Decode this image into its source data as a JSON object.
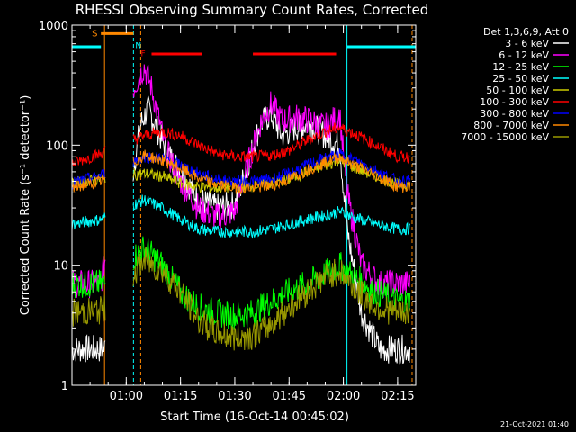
{
  "chart_data": {
    "type": "line",
    "title": "RHESSI Observing Summary Count Rates, Corrected",
    "ylabel": "Corrected Count Rate (s⁻¹ detector⁻¹)",
    "xlabel": "Start Time (16-Oct-14 00:45:02)",
    "y_scale": "log",
    "ylim": [
      1,
      1000
    ],
    "x_unit": "minutes after 00:45:02",
    "xlim": [
      0,
      95
    ],
    "x_ticks": [
      {
        "label": "01:00",
        "t": 15
      },
      {
        "label": "01:15",
        "t": 30
      },
      {
        "label": "01:30",
        "t": 45
      },
      {
        "label": "01:45",
        "t": 60
      },
      {
        "label": "02:00",
        "t": 75
      },
      {
        "label": "02:15",
        "t": 90
      }
    ],
    "y_ticks": [
      {
        "label": "1",
        "v": 1
      },
      {
        "label": "10",
        "v": 10
      },
      {
        "label": "100",
        "v": 100
      },
      {
        "label": "1000",
        "v": 1000
      }
    ],
    "legend_title": "Det 1,3,6,9, Att 0",
    "legend_placement": "right, outside plot",
    "series": [
      {
        "name": "3 - 6 keV",
        "color": "#ffffff",
        "points": [
          [
            0,
            2
          ],
          [
            8,
            2
          ],
          [
            9,
            2
          ],
          [
            19,
            150
          ],
          [
            21,
            200
          ],
          [
            23,
            150
          ],
          [
            26,
            90
          ],
          [
            30,
            60
          ],
          [
            35,
            35
          ],
          [
            40,
            30
          ],
          [
            45,
            32
          ],
          [
            48,
            60
          ],
          [
            52,
            150
          ],
          [
            55,
            180
          ],
          [
            58,
            120
          ],
          [
            62,
            140
          ],
          [
            66,
            150
          ],
          [
            70,
            120
          ],
          [
            74,
            100
          ],
          [
            76,
            20
          ],
          [
            80,
            4
          ],
          [
            85,
            2
          ],
          [
            90,
            2
          ],
          [
            93,
            2
          ]
        ]
      },
      {
        "name": "6 - 12 keV",
        "color": "#ff00ff",
        "points": [
          [
            0,
            7
          ],
          [
            8,
            7
          ],
          [
            17,
            300
          ],
          [
            20,
            450
          ],
          [
            22,
            300
          ],
          [
            26,
            90
          ],
          [
            30,
            50
          ],
          [
            35,
            30
          ],
          [
            40,
            25
          ],
          [
            45,
            28
          ],
          [
            48,
            60
          ],
          [
            52,
            150
          ],
          [
            55,
            220
          ],
          [
            58,
            160
          ],
          [
            62,
            170
          ],
          [
            66,
            160
          ],
          [
            70,
            140
          ],
          [
            74,
            180
          ],
          [
            76,
            40
          ],
          [
            80,
            10
          ],
          [
            85,
            7
          ],
          [
            90,
            7
          ],
          [
            93,
            7
          ]
        ]
      },
      {
        "name": "12 - 25 keV",
        "color": "#00ff00",
        "points": [
          [
            0,
            7
          ],
          [
            8,
            7
          ],
          [
            9,
            7
          ],
          [
            20,
            14
          ],
          [
            25,
            10
          ],
          [
            30,
            6
          ],
          [
            35,
            4.5
          ],
          [
            40,
            4
          ],
          [
            45,
            3.8
          ],
          [
            50,
            4
          ],
          [
            55,
            5
          ],
          [
            60,
            6
          ],
          [
            65,
            7
          ],
          [
            70,
            8.5
          ],
          [
            74,
            10
          ],
          [
            78,
            8
          ],
          [
            84,
            6
          ],
          [
            90,
            5
          ],
          [
            93,
            5
          ]
        ]
      },
      {
        "name": "25 - 50 keV",
        "color": "#00ffff",
        "points": [
          [
            0,
            22
          ],
          [
            8,
            24
          ],
          [
            9,
            25
          ],
          [
            20,
            35
          ],
          [
            25,
            30
          ],
          [
            30,
            24
          ],
          [
            35,
            20
          ],
          [
            40,
            19
          ],
          [
            45,
            19
          ],
          [
            50,
            19
          ],
          [
            55,
            20
          ],
          [
            60,
            22
          ],
          [
            65,
            24
          ],
          [
            70,
            26
          ],
          [
            74,
            28
          ],
          [
            78,
            25
          ],
          [
            84,
            22
          ],
          [
            90,
            20
          ],
          [
            93,
            20
          ]
        ]
      },
      {
        "name": "50 - 100 keV",
        "color": "#cccc00",
        "points": [
          [
            0,
            48
          ],
          [
            8,
            52
          ],
          [
            9,
            54
          ],
          [
            20,
            58
          ],
          [
            25,
            55
          ],
          [
            30,
            48
          ],
          [
            35,
            45
          ],
          [
            40,
            44
          ],
          [
            45,
            45
          ],
          [
            50,
            46
          ],
          [
            55,
            48
          ],
          [
            60,
            52
          ],
          [
            65,
            60
          ],
          [
            70,
            68
          ],
          [
            74,
            75
          ],
          [
            78,
            65
          ],
          [
            84,
            55
          ],
          [
            90,
            47
          ],
          [
            93,
            47
          ]
        ]
      },
      {
        "name": "100 - 300 keV",
        "color": "#ff0000",
        "points": [
          [
            0,
            70
          ],
          [
            8,
            85
          ],
          [
            9,
            90
          ],
          [
            20,
            120
          ],
          [
            25,
            130
          ],
          [
            30,
            120
          ],
          [
            35,
            100
          ],
          [
            40,
            85
          ],
          [
            45,
            80
          ],
          [
            50,
            80
          ],
          [
            55,
            82
          ],
          [
            60,
            90
          ],
          [
            65,
            110
          ],
          [
            70,
            130
          ],
          [
            74,
            140
          ],
          [
            78,
            125
          ],
          [
            84,
            100
          ],
          [
            90,
            80
          ],
          [
            93,
            80
          ]
        ]
      },
      {
        "name": "300 - 800 keV",
        "color": "#0000ff",
        "points": [
          [
            0,
            48
          ],
          [
            8,
            56
          ],
          [
            9,
            58
          ],
          [
            20,
            80
          ],
          [
            25,
            78
          ],
          [
            30,
            68
          ],
          [
            35,
            58
          ],
          [
            40,
            52
          ],
          [
            45,
            50
          ],
          [
            50,
            50
          ],
          [
            55,
            52
          ],
          [
            60,
            58
          ],
          [
            65,
            68
          ],
          [
            70,
            78
          ],
          [
            74,
            84
          ],
          [
            78,
            75
          ],
          [
            84,
            62
          ],
          [
            90,
            50
          ],
          [
            93,
            50
          ]
        ]
      },
      {
        "name": "800 - 7000 keV",
        "color": "#ff8800",
        "points": [
          [
            0,
            44
          ],
          [
            8,
            50
          ],
          [
            9,
            52
          ],
          [
            20,
            82
          ],
          [
            25,
            75
          ],
          [
            30,
            64
          ],
          [
            35,
            53
          ],
          [
            40,
            47
          ],
          [
            45,
            44
          ],
          [
            50,
            44
          ],
          [
            55,
            46
          ],
          [
            60,
            52
          ],
          [
            65,
            62
          ],
          [
            70,
            72
          ],
          [
            74,
            80
          ],
          [
            78,
            68
          ],
          [
            84,
            56
          ],
          [
            90,
            45
          ],
          [
            93,
            45
          ]
        ]
      },
      {
        "name": "7000 - 15000 keV",
        "color": "#999900",
        "points": [
          [
            0,
            4
          ],
          [
            8,
            4.2
          ],
          [
            9,
            4.3
          ],
          [
            20,
            11
          ],
          [
            25,
            9
          ],
          [
            30,
            6
          ],
          [
            35,
            3.5
          ],
          [
            40,
            2.7
          ],
          [
            45,
            2.5
          ],
          [
            50,
            2.6
          ],
          [
            55,
            3.2
          ],
          [
            60,
            4.5
          ],
          [
            65,
            6
          ],
          [
            70,
            8
          ],
          [
            74,
            9
          ],
          [
            78,
            6.5
          ],
          [
            84,
            4.5
          ],
          [
            90,
            4
          ],
          [
            93,
            4
          ]
        ]
      }
    ],
    "annotations": {
      "S": {
        "label": "S",
        "color": "#ff8800",
        "y": 850,
        "t_start": 8,
        "t_end": 17
      },
      "N": {
        "label": "N",
        "color": "#00ffff",
        "y": 690,
        "t": 17.5
      },
      "F": {
        "label": "F",
        "color": "#ff0000",
        "y": 590,
        "t": 21
      },
      "flare_bars": {
        "color": "#ff0000",
        "y": 575,
        "segments": [
          [
            22,
            36
          ],
          [
            50,
            73
          ]
        ]
      },
      "night_bars": {
        "color": "#00ffff",
        "y": 660,
        "segments": [
          [
            0,
            8
          ],
          [
            76,
            95
          ]
        ]
      },
      "vlines_cyan": [
        0,
        17,
        76
      ],
      "vlines_orange": [
        9,
        19,
        94
      ]
    }
  },
  "timestamp": "21-Oct-2021 01:40"
}
